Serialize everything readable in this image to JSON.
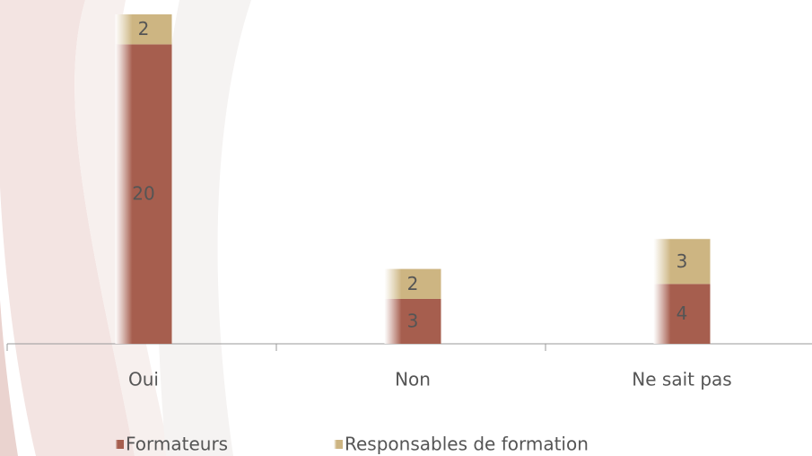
{
  "chart_data": {
    "type": "bar",
    "stacked": true,
    "categories": [
      "Oui",
      "Non",
      "Ne sait pas"
    ],
    "series": [
      {
        "name": "Formateurs",
        "color": "#a65e4e",
        "values": [
          20,
          3,
          4
        ]
      },
      {
        "name": "Responsables de formation",
        "color": "#cdb582",
        "values": [
          2,
          2,
          3
        ]
      }
    ],
    "legend": "bottom"
  }
}
